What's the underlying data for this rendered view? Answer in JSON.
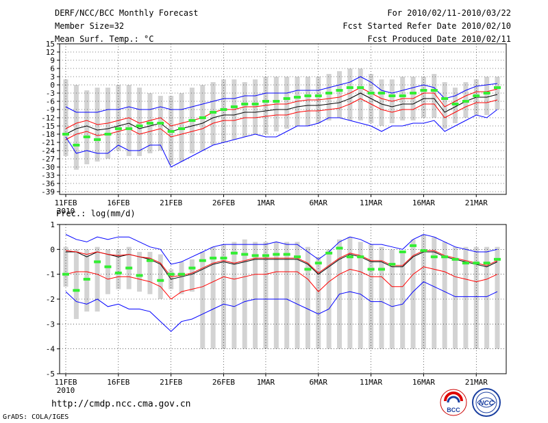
{
  "header": {
    "title": "DERF/NCC/BCC Monthly Forecast",
    "member": "Member Size=32",
    "variable": "Mean Surf. Temp.: °C",
    "period": "For 2010/02/11-2010/03/22",
    "started": "Fcst Started Refer Date 2010/02/10",
    "produced": "Fcst Produced Date 2010/02/11"
  },
  "footer": {
    "url": "http://cmdp.ncc.cma.gov.cn",
    "grads": "GrADS: COLA/IGES",
    "logo_bcc": "BCC",
    "logo_ncc": "NCC"
  },
  "colors": {
    "mean": "#000000",
    "spread": "#ff0000",
    "extreme": "#0000ff",
    "box": "#d3d3d3",
    "obs": "#33ee33"
  },
  "chart_data": [
    {
      "type": "line",
      "title": "Mean Surf. Temp.: °C",
      "x_tick_labels": [
        "11FEB",
        "16FEB",
        "21FEB",
        "26FEB",
        "1MAR",
        "6MAR",
        "11MAR",
        "16MAR",
        "21MAR"
      ],
      "x_tick_index": [
        0,
        5,
        10,
        15,
        19,
        24,
        29,
        34,
        39
      ],
      "year_label": "2010",
      "ylim": [
        -40,
        15
      ],
      "yticks": [
        15,
        12,
        9,
        6,
        3,
        0,
        -3,
        -6,
        -9,
        -12,
        -15,
        -18,
        -21,
        -24,
        -27,
        -30,
        -33,
        -36,
        -39
      ],
      "series": [
        {
          "name": "ensemble mean",
          "values": [
            -18,
            -16,
            -15,
            -16.5,
            -16,
            -15,
            -14,
            -16,
            -15,
            -14,
            -17,
            -16,
            -15,
            -14,
            -12,
            -11,
            -11,
            -10,
            -10,
            -9.5,
            -9,
            -9,
            -8,
            -7.5,
            -7.5,
            -7,
            -6.5,
            -5,
            -3,
            -5,
            -7,
            -8,
            -7,
            -7,
            -5,
            -5,
            -10,
            -8,
            -6,
            -4.5,
            -4.5,
            -3.5
          ]
        },
        {
          "name": "mean + sd",
          "values": [
            -16,
            -14,
            -13,
            -14.5,
            -14,
            -13,
            -12,
            -14,
            -13,
            -12,
            -15,
            -14,
            -13,
            -12,
            -10,
            -9,
            -9,
            -8,
            -8,
            -7.5,
            -7,
            -7,
            -6,
            -5.5,
            -5.5,
            -5,
            -4.5,
            -3,
            -1,
            -3,
            -5,
            -6,
            -5,
            -5,
            -3,
            -3,
            -8,
            -6,
            -4,
            -2.5,
            -2.5,
            -1.5
          ]
        },
        {
          "name": "mean - sd",
          "values": [
            -20,
            -18,
            -17,
            -18.5,
            -18,
            -17,
            -16,
            -18,
            -17,
            -16,
            -19,
            -18,
            -17,
            -16,
            -14,
            -13,
            -13,
            -12,
            -12,
            -11.5,
            -11,
            -11,
            -10,
            -9.5,
            -9.5,
            -9,
            -8.5,
            -7,
            -5,
            -7,
            -9,
            -10,
            -9,
            -9,
            -7,
            -7,
            -12,
            -10,
            -8,
            -6.5,
            -6.5,
            -5.5
          ]
        },
        {
          "name": "ensemble max",
          "values": [
            -8,
            -10,
            -10,
            -10,
            -9,
            -9,
            -8,
            -9,
            -9,
            -8,
            -9,
            -9,
            -8,
            -7,
            -6,
            -5,
            -5,
            -4,
            -4,
            -3,
            -3,
            -3,
            -2,
            -2,
            -2,
            -1,
            0,
            1,
            3,
            1,
            -2,
            -3,
            -2,
            -1,
            0,
            -1,
            -5,
            -4,
            -2,
            -0.5,
            0,
            0.5
          ]
        },
        {
          "name": "ensemble min",
          "values": [
            -19,
            -25,
            -24,
            -25,
            -25,
            -22,
            -24,
            -24,
            -22,
            -22,
            -30,
            -28,
            -26,
            -24,
            -22,
            -21,
            -20,
            -19,
            -18,
            -19,
            -19,
            -17,
            -15,
            -15,
            -14,
            -12,
            -12,
            -13,
            -14,
            -15,
            -17,
            -15,
            -15,
            -14,
            -14,
            -13,
            -17,
            -15,
            -13,
            -11,
            -12,
            -9
          ]
        },
        {
          "name": "box top",
          "values": [
            2,
            0,
            -2,
            -1,
            -1,
            0,
            0,
            -1,
            -3,
            -4,
            -4,
            -3,
            -1,
            0,
            1,
            2,
            2,
            1,
            2,
            3,
            3,
            3,
            3,
            3,
            3,
            4,
            5,
            6,
            6,
            4,
            2,
            2,
            3,
            3,
            3,
            4,
            1,
            -1,
            1,
            2,
            3,
            3
          ]
        },
        {
          "name": "box bottom",
          "values": [
            -26,
            -31,
            -29,
            -28,
            -27,
            -24,
            -26,
            -26,
            -25,
            -24,
            -29,
            -28,
            -25,
            -24,
            -22,
            -21,
            -20,
            -19,
            -18,
            -18,
            -17,
            -16,
            -15,
            -15,
            -14,
            -13,
            -12,
            -13,
            -13,
            -14,
            -15,
            -14,
            -13,
            -13,
            -12,
            -12,
            -16,
            -14,
            -12,
            -11,
            -11,
            -9
          ]
        },
        {
          "name": "observed",
          "values": [
            -18,
            -22,
            -19,
            -20,
            -18,
            -16,
            -16,
            -15,
            -14,
            -14,
            -17,
            -16,
            -13,
            -12,
            -10,
            -9,
            -8,
            -7,
            -7,
            -6,
            -6,
            -5,
            -4.5,
            -4,
            -4,
            -3,
            -2,
            -1,
            -1,
            -3,
            -3,
            -4,
            -4,
            -3,
            -2,
            -2,
            -5,
            -7,
            -6,
            -4,
            -3,
            -1
          ]
        }
      ]
    },
    {
      "type": "line",
      "title": "Prec.: log(mm/d)",
      "x_tick_labels": [
        "11FEB",
        "16FEB",
        "21FEB",
        "26FEB",
        "1MAR",
        "6MAR",
        "11MAR",
        "16MAR",
        "21MAR"
      ],
      "x_tick_index": [
        0,
        5,
        10,
        15,
        19,
        24,
        29,
        34,
        39
      ],
      "year_label": "2010",
      "ylim": [
        -5,
        1
      ],
      "yticks": [
        1,
        0,
        -1,
        -2,
        -3,
        -4,
        -5
      ],
      "series": [
        {
          "name": "ensemble mean",
          "values": [
            -0.1,
            -0.1,
            -0.3,
            -0.1,
            -0.2,
            -0.3,
            -0.2,
            -0.3,
            -0.4,
            -0.6,
            -1.2,
            -1.1,
            -1.0,
            -0.8,
            -0.6,
            -0.5,
            -0.6,
            -0.5,
            -0.4,
            -0.4,
            -0.4,
            -0.4,
            -0.4,
            -0.6,
            -1.0,
            -0.7,
            -0.4,
            -0.2,
            -0.3,
            -0.5,
            -0.5,
            -0.7,
            -0.7,
            -0.3,
            -0.1,
            -0.1,
            -0.3,
            -0.4,
            -0.5,
            -0.6,
            -0.7,
            -0.5
          ]
        },
        {
          "name": "mean + sd",
          "values": [
            -0.05,
            -0.1,
            -0.2,
            -0.1,
            -0.2,
            -0.25,
            -0.2,
            -0.3,
            -0.35,
            -0.55,
            -1.1,
            -1.05,
            -0.95,
            -0.75,
            -0.55,
            -0.45,
            -0.55,
            -0.45,
            -0.35,
            -0.35,
            -0.35,
            -0.35,
            -0.35,
            -0.55,
            -0.95,
            -0.65,
            -0.35,
            -0.15,
            -0.25,
            -0.45,
            -0.45,
            -0.65,
            -0.65,
            -0.25,
            -0.05,
            -0.05,
            -0.25,
            -0.35,
            -0.45,
            -0.55,
            -0.65,
            -0.45
          ]
        },
        {
          "name": "mean - sd",
          "values": [
            -1.0,
            -0.9,
            -0.9,
            -1.0,
            -1.2,
            -1.1,
            -1.1,
            -1.2,
            -1.3,
            -1.5,
            -2.0,
            -1.7,
            -1.6,
            -1.5,
            -1.3,
            -1.1,
            -1.2,
            -1.1,
            -1.0,
            -1.0,
            -0.9,
            -0.9,
            -0.9,
            -1.2,
            -1.7,
            -1.3,
            -1.0,
            -0.8,
            -0.9,
            -1.1,
            -1.1,
            -1.5,
            -1.5,
            -1.0,
            -0.7,
            -0.8,
            -0.9,
            -1.1,
            -1.2,
            -1.3,
            -1.2,
            -1.0
          ]
        },
        {
          "name": "ensemble max",
          "values": [
            0.6,
            0.4,
            0.3,
            0.5,
            0.4,
            0.5,
            0.5,
            0.3,
            0.1,
            0.0,
            -0.6,
            -0.5,
            -0.3,
            -0.1,
            0.1,
            0.2,
            0.2,
            0.2,
            0.2,
            0.2,
            0.3,
            0.2,
            0.2,
            -0.1,
            -0.4,
            -0.1,
            0.3,
            0.5,
            0.4,
            0.2,
            0.2,
            0.1,
            0.0,
            0.4,
            0.6,
            0.5,
            0.3,
            0.1,
            0.0,
            -0.1,
            -0.1,
            0.0
          ]
        },
        {
          "name": "ensemble min",
          "values": [
            -1.7,
            -2.1,
            -2.2,
            -2.0,
            -2.3,
            -2.2,
            -2.4,
            -2.4,
            -2.5,
            -2.9,
            -3.3,
            -2.9,
            -2.8,
            -2.6,
            -2.4,
            -2.2,
            -2.3,
            -2.1,
            -2.0,
            -2.0,
            -2.0,
            -2.0,
            -2.2,
            -2.4,
            -2.6,
            -2.4,
            -1.8,
            -1.7,
            -1.8,
            -2.1,
            -2.1,
            -2.3,
            -2.2,
            -1.7,
            -1.3,
            -1.5,
            -1.7,
            -1.9,
            -1.9,
            -1.9,
            -1.9,
            -1.7
          ]
        },
        {
          "name": "box top",
          "values": [
            0.1,
            0.0,
            0.0,
            0.1,
            0.0,
            0.0,
            0.1,
            -0.1,
            -0.1,
            -0.2,
            -0.8,
            -0.5,
            -0.4,
            -0.1,
            0.1,
            0.2,
            0.3,
            0.4,
            0.3,
            0.3,
            0.3,
            0.3,
            0.3,
            0.1,
            -0.3,
            0.0,
            0.4,
            0.5,
            0.3,
            0.2,
            0.1,
            0.0,
            -0.1,
            0.4,
            0.6,
            0.5,
            0.3,
            0.1,
            0.1,
            0.1,
            0.1,
            0.1
          ]
        },
        {
          "name": "box bottom",
          "values": [
            -1.5,
            -2.8,
            -2.5,
            -2.5,
            -1.8,
            -1.6,
            -1.6,
            -1.7,
            -1.8,
            -2.0,
            -1.6,
            -1.8,
            -1.7,
            -4.0,
            -4.0,
            -4.0,
            -4.0,
            -4.0,
            -4.0,
            -4.0,
            -4.0,
            -4.0,
            -4.0,
            -4.0,
            -4.0,
            -4.0,
            -4.0,
            -4.0,
            -4.0,
            -4.0,
            -4.0,
            -4.0,
            -4.0,
            -4.0,
            -4.0,
            -4.0,
            -4.0,
            -4.0,
            -4.0,
            -4.0,
            -4.0,
            -4.0
          ]
        },
        {
          "name": "observed",
          "values": [
            -1.0,
            -1.65,
            -1.2,
            -0.5,
            -0.7,
            -0.95,
            -0.75,
            -1.05,
            -0.45,
            -1.25,
            -1.0,
            -1.0,
            -0.75,
            -0.45,
            -0.35,
            -0.35,
            -0.15,
            -0.2,
            -0.25,
            -0.25,
            -0.2,
            -0.2,
            -0.3,
            -0.8,
            -0.55,
            -0.15,
            0.05,
            -0.3,
            -0.3,
            -0.8,
            -0.8,
            -0.6,
            -0.1,
            0.15,
            -0.05,
            -0.3,
            -0.3,
            -0.4,
            -0.55,
            -0.55,
            -0.55,
            -0.4
          ]
        }
      ]
    }
  ]
}
